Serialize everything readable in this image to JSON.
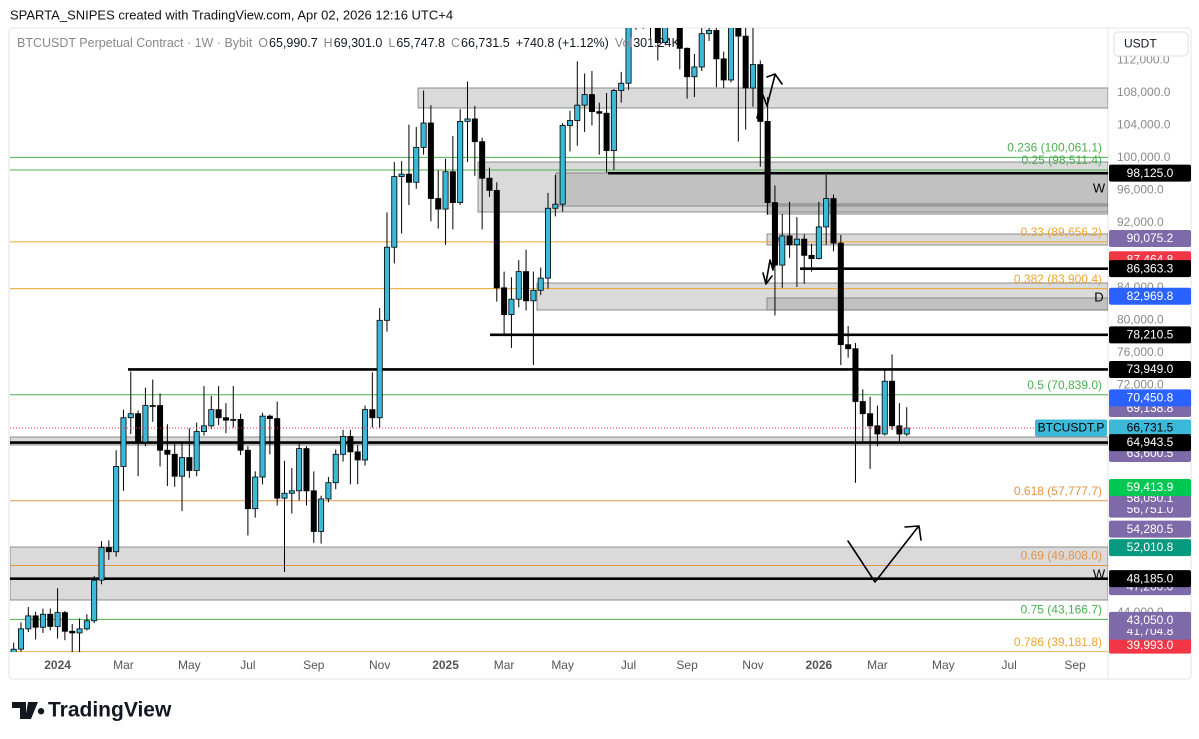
{
  "watermark": "SPARTA_SNIPES created with TradingView.com, Apr 02, 2026 12:16 UTC+4",
  "currency": "USDT",
  "brand": "TradingView",
  "legend": {
    "symbol": "BTCUSDT Perpetual Contract · 1W · Bybit",
    "items": [
      {
        "key": "O",
        "value": "65,990.7"
      },
      {
        "key": "H",
        "value": "69,301.0"
      },
      {
        "key": "L",
        "value": "65,747.8"
      },
      {
        "key": "C",
        "value": "66,731.5"
      }
    ],
    "change": "+740.8 (+1.12%)",
    "volume_key": "Vol",
    "volume": "301.24K"
  },
  "chart_data": {
    "type": "candlestick",
    "up_color": "#3cb8d8",
    "down_color": "#000000",
    "ylim": [
      39150,
      116000
    ],
    "yticks": [
      {
        "value": 112000,
        "label": "112,000.0"
      },
      {
        "value": 108000,
        "label": "108,000.0"
      },
      {
        "value": 104000,
        "label": "104,000.0"
      },
      {
        "value": 100000,
        "label": "100,000.0"
      },
      {
        "value": 96000,
        "label": "96,000.0"
      },
      {
        "value": 92000,
        "label": "92,000.0"
      },
      {
        "value": 84000,
        "label": "84,000.0"
      },
      {
        "value": 80000,
        "label": "80,000.0"
      },
      {
        "value": 76000,
        "label": "76,000.0"
      },
      {
        "value": 72000,
        "label": "72,000.0"
      },
      {
        "value": 44000,
        "label": "44,000.0"
      }
    ],
    "categories": [
      null,
      null,
      null,
      null,
      null,
      null,
      "2024",
      null,
      null,
      null,
      null,
      null,
      null,
      null,
      null,
      "Mar",
      null,
      null,
      null,
      null,
      null,
      null,
      null,
      null,
      "May",
      null,
      null,
      null,
      null,
      null,
      null,
      null,
      "Jul",
      null,
      null,
      null,
      null,
      null,
      null,
      null,
      null,
      "Sep",
      null,
      null,
      null,
      null,
      null,
      null,
      null,
      null,
      "Nov",
      null,
      null,
      null,
      null,
      null,
      null,
      null,
      null,
      "2025",
      null,
      null,
      null,
      null,
      null,
      null,
      null,
      "Mar",
      null,
      null,
      null,
      null,
      null,
      null,
      null,
      "May",
      null,
      null,
      null,
      null,
      null,
      null,
      null,
      null,
      "Jul",
      null,
      null,
      null,
      null,
      null,
      null,
      null,
      "Sep",
      null,
      null,
      null,
      null,
      null,
      null,
      null,
      null,
      "Nov",
      null,
      null,
      null,
      null,
      null,
      null,
      null,
      null,
      "2026",
      null,
      null,
      null,
      null,
      null,
      null,
      null,
      "Mar",
      null,
      null,
      null,
      null,
      null,
      null,
      null,
      null,
      "May",
      null,
      null,
      null,
      null,
      null,
      null,
      null,
      null,
      "Jul",
      null,
      null,
      null,
      null,
      null,
      null,
      null,
      null,
      "Sep",
      null,
      null,
      null,
      null
    ],
    "open": [
      38700,
      39500,
      42000,
      43600,
      42200,
      43800,
      42300,
      44000,
      41700,
      41500,
      42000,
      43000,
      48000,
      52000,
      51500,
      62000,
      68000,
      68500,
      65000,
      69500,
      69500,
      64000,
      63500,
      60800,
      63100,
      61500,
      66300,
      67000,
      69000,
      68000,
      67700,
      67800,
      64000,
      56800,
      60700,
      68200,
      67900,
      58100,
      58700,
      59000,
      64200,
      59000,
      54000,
      58000,
      60000,
      63500,
      65700,
      63800,
      62800,
      69000,
      68000,
      80000,
      89000,
      97700,
      98000,
      97000,
      101300,
      104300,
      95000,
      93700,
      98300,
      94500,
      104500,
      104800,
      102000,
      97500,
      96000,
      84000,
      80700,
      82600,
      86000,
      82400,
      83700,
      85200,
      93800,
      94300,
      104000,
      104600,
      106500,
      107800,
      105700,
      105500,
      100900,
      108300,
      109200,
      119800,
      117300,
      119500,
      119400,
      114200,
      119300,
      117400,
      113500,
      110000,
      111200,
      115300,
      115700,
      112200,
      109600,
      123300,
      115000,
      108600,
      111500,
      104500,
      94500,
      86800,
      90400,
      89300,
      90000,
      88000,
      87600,
      91500,
      95000,
      89500,
      77000,
      76500,
      70000,
      68500,
      67000,
      66000,
      72500,
      67000,
      65990.7,
      null,
      null,
      null,
      null,
      null,
      null,
      null,
      null,
      null,
      null,
      null,
      null,
      null,
      null,
      null,
      null,
      null,
      null,
      null,
      null,
      null,
      null,
      null,
      null,
      null,
      null,
      null
    ],
    "high": [
      40300,
      42800,
      44700,
      44100,
      44500,
      44500,
      47000,
      44200,
      42600,
      43300,
      43800,
      48500,
      52800,
      52900,
      64000,
      69000,
      73700,
      68900,
      71700,
      72700,
      71000,
      67200,
      65000,
      64800,
      66700,
      67400,
      71900,
      70700,
      71900,
      69800,
      71900,
      68500,
      64500,
      61400,
      68600,
      68400,
      70000,
      62700,
      61800,
      65100,
      64500,
      61400,
      58400,
      60700,
      64100,
      66500,
      66500,
      64600,
      69500,
      73600,
      81500,
      93300,
      99500,
      99600,
      104100,
      103800,
      108300,
      106500,
      98500,
      99900,
      102700,
      106000,
      109400,
      106400,
      102500,
      98800,
      97000,
      86000,
      85300,
      87400,
      88700,
      86000,
      86500,
      95700,
      97900,
      104300,
      105800,
      111900,
      110400,
      110700,
      106800,
      108000,
      108500,
      110600,
      123200,
      123000,
      120200,
      120100,
      119800,
      122300,
      124500,
      117600,
      113600,
      112800,
      116600,
      117900,
      117000,
      113100,
      126200,
      123500,
      116000,
      116400,
      112000,
      107500,
      96600,
      93100,
      94600,
      92700,
      90600,
      89400,
      94600,
      97900,
      95500,
      90500,
      79300,
      77200,
      71500,
      70600,
      69500,
      74000,
      75800,
      69800,
      69301.0,
      null,
      null,
      null,
      null,
      null,
      null,
      null,
      null,
      null,
      null,
      null,
      null,
      null,
      null,
      null,
      null,
      null,
      null,
      null,
      null,
      null,
      null,
      null,
      null,
      null,
      null,
      null
    ],
    "low": [
      38200,
      39200,
      41600,
      40700,
      41500,
      41800,
      40800,
      40600,
      38600,
      39000,
      41800,
      42700,
      47500,
      50500,
      50900,
      59000,
      66000,
      60800,
      64500,
      67500,
      62000,
      59600,
      59500,
      56500,
      60600,
      60800,
      65800,
      66600,
      67100,
      66100,
      66800,
      63400,
      53500,
      55700,
      59800,
      63500,
      57200,
      49000,
      56200,
      57800,
      57200,
      52600,
      52500,
      57600,
      59200,
      62600,
      59800,
      59800,
      62100,
      66800,
      66800,
      78600,
      87000,
      90700,
      94200,
      96200,
      100400,
      92200,
      91300,
      89300,
      91200,
      94200,
      99500,
      97800,
      91200,
      95200,
      82300,
      78200,
      76600,
      81600,
      81200,
      74500,
      83100,
      83900,
      92800,
      93400,
      100800,
      101500,
      103200,
      104000,
      100400,
      98200,
      98500,
      106800,
      108400,
      115800,
      115900,
      114800,
      112000,
      114100,
      116800,
      110900,
      107300,
      107500,
      110700,
      114400,
      108700,
      108600,
      109300,
      102000,
      103500,
      106300,
      98900,
      93000,
      80600,
      84000,
      87700,
      84100,
      84500,
      86000,
      87500,
      89300,
      88500,
      74500,
      75400,
      60000,
      65000,
      61700,
      64500,
      65800,
      66500,
      64900,
      65747.8,
      null,
      null,
      null,
      null,
      null,
      null,
      null,
      null,
      null,
      null,
      null,
      null,
      null,
      null,
      null,
      null,
      null,
      null,
      null,
      null,
      null,
      null,
      null,
      null,
      null,
      null,
      null
    ],
    "close": [
      39500,
      42000,
      43600,
      42200,
      43800,
      42300,
      44000,
      41700,
      41500,
      42000,
      43000,
      48000,
      52000,
      51500,
      62000,
      68000,
      68500,
      65000,
      69500,
      69500,
      64000,
      63500,
      60800,
      63100,
      61500,
      66300,
      67000,
      69000,
      68000,
      67700,
      67800,
      64000,
      56800,
      60700,
      68200,
      67900,
      58100,
      58700,
      59000,
      64200,
      59000,
      54000,
      58000,
      60000,
      63500,
      65700,
      63800,
      62800,
      69000,
      68000,
      80000,
      89000,
      97700,
      98000,
      97000,
      101300,
      104300,
      95000,
      93700,
      98300,
      94500,
      104500,
      104800,
      102000,
      97500,
      96000,
      84000,
      80700,
      82600,
      86000,
      82400,
      83700,
      85200,
      93800,
      94300,
      104000,
      104600,
      106500,
      107800,
      105700,
      105500,
      100900,
      108300,
      109200,
      119800,
      117300,
      119500,
      119400,
      114200,
      119300,
      117400,
      113500,
      110000,
      111200,
      115300,
      115700,
      112200,
      109600,
      123300,
      115000,
      108600,
      111500,
      104500,
      94500,
      86800,
      90400,
      89300,
      90000,
      88000,
      87600,
      91500,
      95000,
      89500,
      77000,
      76500,
      70000,
      68500,
      67000,
      66000,
      72500,
      67000,
      65990.7,
      66731.5,
      null,
      null,
      null,
      null,
      null,
      null,
      null,
      null,
      null,
      null,
      null,
      null,
      null,
      null,
      null,
      null,
      null,
      null,
      null,
      null,
      null,
      null,
      null,
      null,
      null,
      null,
      null
    ],
    "fib_levels": [
      {
        "value": 100061.1,
        "label": "0.236 (100,061.1)",
        "color": "#4caf50"
      },
      {
        "value": 98511.4,
        "label": "0.25 (98,511.4)",
        "color": "#4caf50"
      },
      {
        "value": 89656.2,
        "label": "0.33 (89,656.2)",
        "color": "#f0a530"
      },
      {
        "value": 83900.4,
        "label": "0.382 (83,900.4)",
        "color": "#f0a530"
      },
      {
        "value": 70839.0,
        "label": "0.5 (70,839.0)",
        "color": "#4caf50"
      },
      {
        "value": 57777.7,
        "label": "0.618 (57,777.7)",
        "color": "#e39545"
      },
      {
        "value": 49808.0,
        "label": "0.69 (49,808.0)",
        "color": "#e39545"
      },
      {
        "value": 43166.7,
        "label": "0.75 (43,166.7)",
        "color": "#4caf50"
      },
      {
        "value": 39181.8,
        "label": "0.786 (39,181.8)",
        "color": "#f0a530"
      }
    ],
    "price_labels": [
      {
        "value": 87464.8,
        "label": "87,464.8",
        "color": "#f23645"
      },
      {
        "value": 90075.2,
        "label": "90,075.2",
        "color": "#7e6aa8"
      },
      {
        "value": 98125.0,
        "label": "98,125.0",
        "color": "#000000"
      },
      {
        "value": 86363.3,
        "label": "86,363.3",
        "color": "#000000"
      },
      {
        "value": 82969.8,
        "label": "82,969.8",
        "color": "#2962ff"
      },
      {
        "value": 78210.5,
        "label": "78,210.5",
        "color": "#000000"
      },
      {
        "value": 73949.0,
        "label": "73,949.0",
        "color": "#000000"
      },
      {
        "value": 69138.8,
        "label": "69,138.8",
        "color": "#7e6aa8"
      },
      {
        "value": 70450.8,
        "label": "70,450.8",
        "color": "#2962ff"
      },
      {
        "value": 63600.5,
        "label": "63,600.5",
        "color": "#7e6aa8"
      },
      {
        "value": 66731.5,
        "label": "66,731.5",
        "color": "#3cb8d8"
      },
      {
        "value": 64943.5,
        "label": "64,943.5",
        "color": "#000000"
      },
      {
        "value": 54280.5,
        "label": "54,280.5",
        "color": "#7e6aa8"
      },
      {
        "value": 56751.0,
        "label": "56,751.0",
        "color": "#7e6aa8"
      },
      {
        "value": 58050.1,
        "label": "58,050.1",
        "color": "#7e6aa8"
      },
      {
        "value": 59413.9,
        "label": "59,413.9",
        "color": "#00c853"
      },
      {
        "value": 52010.8,
        "label": "52,010.8",
        "color": "#089981"
      },
      {
        "value": 47200.0,
        "label": "47,200.0",
        "color": "#7e6aa8"
      },
      {
        "value": 48185.0,
        "label": "48,185.0",
        "color": "#000000"
      },
      {
        "value": 39993.0,
        "label": "39,993.0",
        "color": "#f23645"
      },
      {
        "value": 41704.8,
        "label": "41,704.8",
        "color": "#7e6aa8"
      },
      {
        "value": 43050.0,
        "label": "43,050.0",
        "color": "#7e6aa8"
      }
    ],
    "symbol_tag": "BTCUSDT.P",
    "price_line_color": "#f23645",
    "annotations": [
      "W",
      "D",
      "W"
    ]
  }
}
